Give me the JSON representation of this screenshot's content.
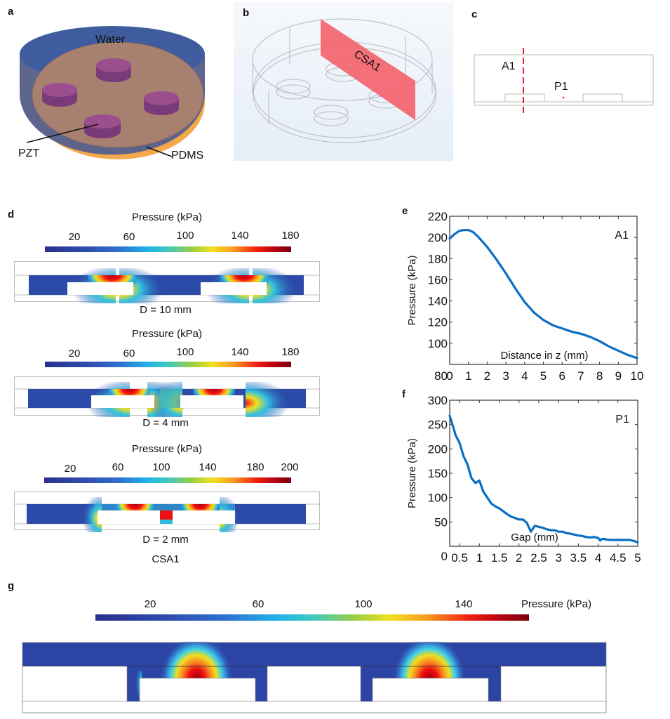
{
  "panels": {
    "a": {
      "letter": "a",
      "labels": {
        "water": "Water",
        "pzt": "PZT",
        "pdms": "PDMS"
      }
    },
    "b": {
      "letter": "b",
      "plane_label": "CSA1",
      "plane_color": "#f4646e"
    },
    "c": {
      "letter": "c",
      "line_label": "A1",
      "point_label": "P1",
      "marker_color": "#e8202c"
    },
    "d": {
      "letter": "d",
      "caption": "CSA1",
      "maps": [
        {
          "colorbar_title": "Pressure (kPa)",
          "ticks": [
            "20",
            "60",
            "100",
            "140",
            "180"
          ],
          "caption": "D = 10 mm"
        },
        {
          "colorbar_title": "Pressure (kPa)",
          "ticks": [
            "20",
            "60",
            "100",
            "140",
            "180"
          ],
          "caption": "D = 4 mm"
        },
        {
          "colorbar_title": "Pressure (kPa)",
          "ticks": [
            "20",
            "60",
            "100",
            "140",
            "180",
            "200"
          ],
          "caption": "D = 2 mm"
        }
      ]
    },
    "e": {
      "letter": "e"
    },
    "f": {
      "letter": "f"
    },
    "g": {
      "letter": "g",
      "colorbar_title": "Pressure (kPa)",
      "ticks": [
        "20",
        "60",
        "100",
        "140"
      ]
    }
  },
  "colors": {
    "line": "#0a6ec4",
    "axis": "#333333",
    "cold": "#2a3a9c",
    "hot": "#e81810"
  },
  "chart_data": [
    {
      "id": "e",
      "type": "line",
      "title": "",
      "annotation": "A1",
      "xlabel": "Distance in z (mm)",
      "ylabel": "Pressure (kPa)",
      "xlim": [
        0,
        10
      ],
      "ylim": [
        80,
        220
      ],
      "xticks": [
        0,
        1,
        2,
        3,
        4,
        5,
        6,
        7,
        8,
        9,
        10
      ],
      "yticks": [
        80,
        100,
        120,
        140,
        160,
        180,
        200,
        220
      ],
      "grid": false,
      "series": [
        {
          "name": "A1",
          "x": [
            0,
            0.25,
            0.5,
            0.75,
            1.0,
            1.25,
            1.5,
            2.0,
            2.5,
            3.0,
            3.5,
            4.0,
            4.5,
            5.0,
            5.5,
            6.0,
            6.5,
            7.0,
            7.5,
            8.0,
            8.5,
            9.0,
            9.5,
            10.0
          ],
          "values": [
            199,
            203,
            206,
            207,
            207,
            205,
            201,
            191,
            179,
            166,
            152,
            139,
            129,
            122,
            117,
            114,
            111,
            109,
            106,
            102,
            97,
            93,
            89,
            86
          ]
        }
      ]
    },
    {
      "id": "f",
      "type": "line",
      "title": "",
      "annotation": "P1",
      "xlabel": "Gap (mm)",
      "ylabel": "Pressure (kPa)",
      "xlim": [
        0.25,
        5
      ],
      "ylim": [
        0,
        300
      ],
      "xticks": [
        0.5,
        1,
        1.5,
        2,
        2.5,
        3,
        3.5,
        4,
        4.5,
        5
      ],
      "xtick_labels": [
        "0.5",
        "1",
        "1.5",
        "2",
        "2.5",
        "3",
        "3.5",
        "4",
        "4.5",
        "5"
      ],
      "yticks": [
        0,
        50,
        100,
        150,
        200,
        250,
        300
      ],
      "grid": false,
      "series": [
        {
          "name": "P1",
          "x": [
            0.25,
            0.3,
            0.4,
            0.5,
            0.6,
            0.7,
            0.8,
            0.9,
            1.0,
            1.1,
            1.2,
            1.3,
            1.4,
            1.5,
            1.6,
            1.7,
            1.8,
            1.9,
            2.0,
            2.1,
            2.2,
            2.3,
            2.4,
            2.45,
            2.5,
            2.55,
            2.6,
            2.7,
            2.8,
            2.9,
            3.0,
            3.1,
            3.2,
            3.3,
            3.4,
            3.5,
            3.6,
            3.7,
            3.8,
            3.9,
            4.0,
            4.05,
            4.1,
            4.15,
            4.2,
            4.3,
            4.4,
            4.5,
            4.6,
            4.7,
            4.8,
            4.9,
            5.0
          ],
          "values": [
            268,
            255,
            228,
            212,
            185,
            168,
            140,
            130,
            135,
            112,
            100,
            88,
            82,
            78,
            72,
            66,
            61,
            58,
            55,
            55,
            48,
            30,
            42,
            41,
            40,
            39,
            38,
            35,
            33,
            33,
            30,
            30,
            27,
            26,
            24,
            22,
            21,
            19,
            18,
            19,
            17,
            12,
            15,
            15,
            14,
            13,
            13,
            13,
            13,
            13,
            13,
            11,
            8
          ]
        }
      ]
    }
  ]
}
